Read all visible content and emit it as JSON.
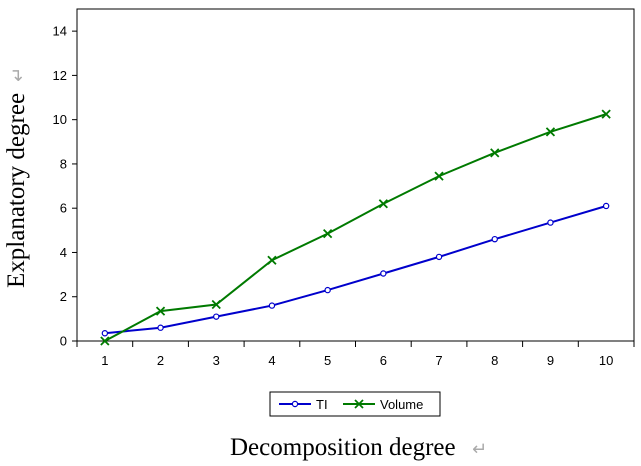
{
  "chart_data": {
    "type": "line",
    "title": "",
    "xlabel": "Decomposition degree",
    "ylabel": "Explanatory degree",
    "x": [
      1,
      2,
      3,
      4,
      5,
      6,
      7,
      8,
      9,
      10
    ],
    "xlim": [
      0.5,
      10.5
    ],
    "ylim": [
      0,
      15
    ],
    "yticks": [
      0,
      2,
      4,
      6,
      8,
      10,
      12,
      14
    ],
    "grid": false,
    "legend_position": "bottom-center",
    "series": [
      {
        "name": "TI",
        "color": "#0000cc",
        "marker": "circle",
        "values": [
          0.35,
          0.6,
          1.1,
          1.6,
          2.3,
          3.05,
          3.8,
          4.6,
          5.35,
          6.1
        ]
      },
      {
        "name": "Volume",
        "color": "#007a00",
        "marker": "x",
        "values": [
          0.0,
          1.35,
          1.65,
          3.65,
          4.85,
          6.2,
          7.45,
          8.5,
          9.45,
          10.25
        ]
      }
    ]
  }
}
